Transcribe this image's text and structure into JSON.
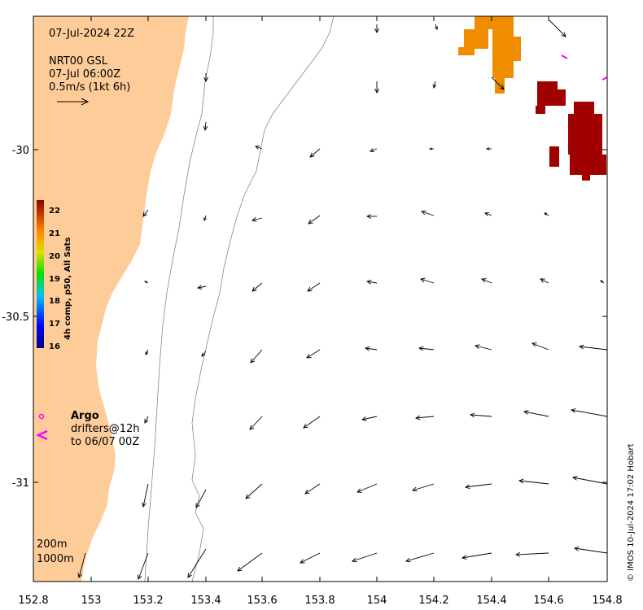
{
  "header": {
    "timestamp": "07-Jul-2024 22Z",
    "source_line": "NRT00 GSL",
    "source_time": "07-Jul 06:00Z",
    "scale_label": "0.5m/s (1kt 6h)"
  },
  "colorbar": {
    "title": "4h comp, p50, All Sats",
    "ticks": [
      "22",
      "21",
      "20",
      "19",
      "18",
      "17",
      "16"
    ]
  },
  "legend": {
    "argo_label": "Argo",
    "drifters_line1": "drifters@12h",
    "drifters_line2": "to 06/07 00Z",
    "argo_color": "#ff00ff"
  },
  "isobaths": {
    "shallow": "200m",
    "deep": "1000m"
  },
  "axes": {
    "x_ticks": [
      "152.8",
      "153",
      "153.2",
      "153.4",
      "153.6",
      "153.8",
      "154",
      "154.2",
      "154.4",
      "154.6",
      "154.8"
    ],
    "y_ticks": [
      "-30",
      "-30.5",
      "-31"
    ]
  },
  "credit": "© IMOS 10-Jul-2024 17:02 Hobart",
  "colors": {
    "land": "#fecc99",
    "sst_warm": "#f08c00",
    "sst_hot": "#a00000",
    "drifter": "#ff00ff"
  }
}
